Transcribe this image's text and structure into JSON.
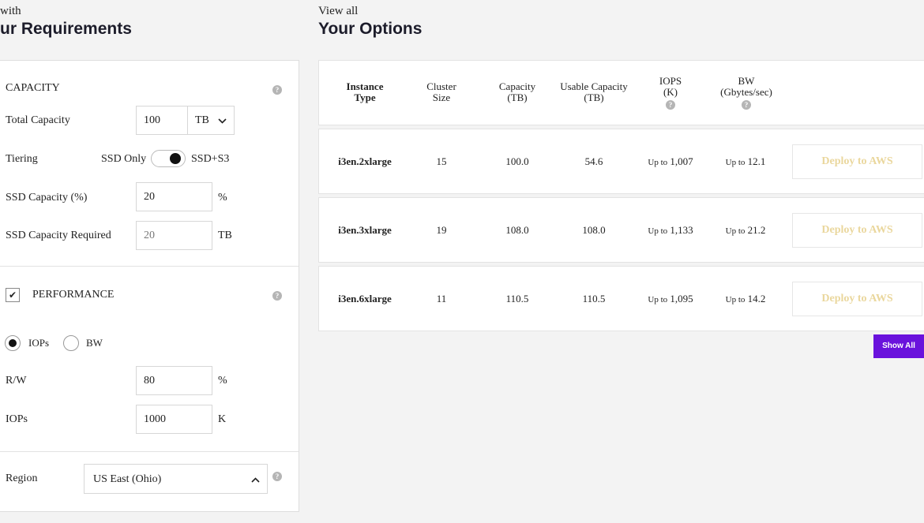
{
  "left": {
    "subtitle": "with",
    "title": "ur Requirements",
    "capacity": {
      "section_label": "CAPACITY",
      "total_capacity_label": "Total Capacity",
      "total_capacity_value": "100",
      "total_capacity_unit": "TB",
      "tiering_label": "Tiering",
      "tiering_option_left": "SSD Only",
      "tiering_option_right": "SSD+S3",
      "ssd_capacity_pct_label": "SSD Capacity (%)",
      "ssd_capacity_pct_value": "20",
      "ssd_capacity_pct_unit": "%",
      "ssd_required_label": "SSD Capacity Required",
      "ssd_required_value": "20",
      "ssd_required_unit": "TB"
    },
    "performance": {
      "section_label": "PERFORMANCE",
      "checkbox_mark": "✔",
      "radio_iops_label": "IOPs",
      "radio_bw_label": "BW",
      "rw_label": "R/W",
      "rw_value": "80",
      "rw_unit": "%",
      "iops_label": "IOPs",
      "iops_value": "1000",
      "iops_unit": "K"
    },
    "region": {
      "label": "Region",
      "value": "US East (Ohio)",
      "chevron": "^"
    },
    "help_glyph": "?"
  },
  "right": {
    "subtitle": "View all",
    "title": "Your Options",
    "columns": {
      "instance_type": [
        "Instance",
        "Type"
      ],
      "cluster_size": [
        "Cluster",
        "Size"
      ],
      "capacity": [
        "Capacity",
        "(TB)"
      ],
      "usable_capacity": [
        "Usable Capacity",
        "(TB)"
      ],
      "iops": [
        "IOPS",
        "(K)"
      ],
      "bw": [
        "BW",
        "(Gbytes/sec)"
      ]
    },
    "rows": [
      {
        "instance": "i3en.2xlarge",
        "cluster": "15",
        "capacity": "100.0",
        "usable": "54.6",
        "iops_prefix": "Up to",
        "iops": "1,007",
        "bw_prefix": "Up to",
        "bw": "12.1",
        "action": "Deploy to AWS"
      },
      {
        "instance": "i3en.3xlarge",
        "cluster": "19",
        "capacity": "108.0",
        "usable": "108.0",
        "iops_prefix": "Up to",
        "iops": "1,133",
        "bw_prefix": "Up to",
        "bw": "21.2",
        "action": "Deploy to AWS"
      },
      {
        "instance": "i3en.6xlarge",
        "cluster": "11",
        "capacity": "110.5",
        "usable": "110.5",
        "iops_prefix": "Up to",
        "iops": "1,095",
        "bw_prefix": "Up to",
        "bw": "14.2",
        "action": "Deploy to AWS"
      }
    ],
    "show_all_label": "Show All"
  },
  "colors": {
    "accent": "#6a12dc",
    "deploy_text": "#ead79d",
    "page_bg": "#f3f3f3"
  }
}
